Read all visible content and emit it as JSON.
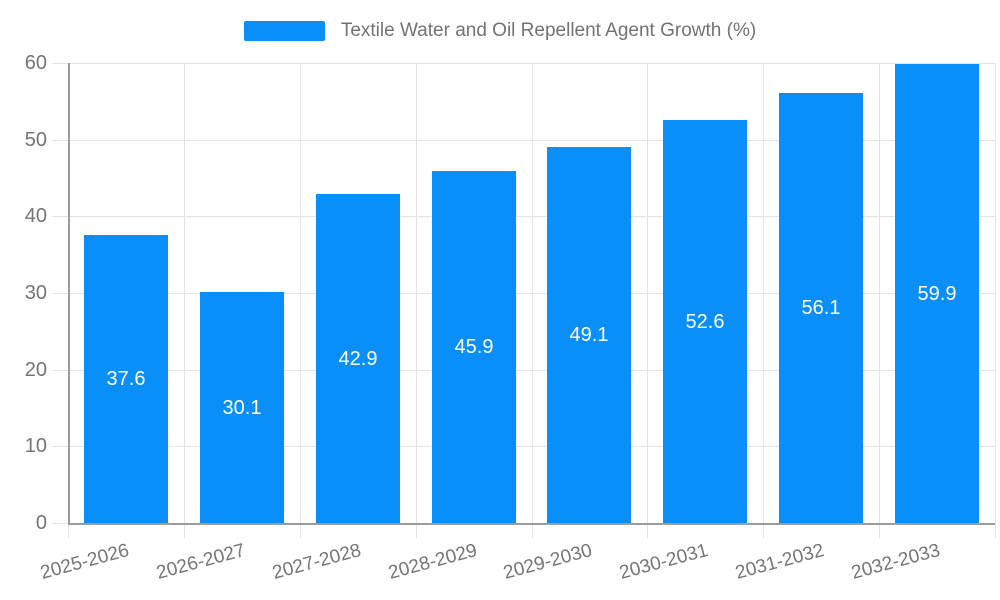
{
  "chart_data": {
    "type": "bar",
    "title": "",
    "legend": "Textile Water and Oil Repellent Agent Growth (%)",
    "legend_position": "top-center",
    "categories": [
      "2025-2026",
      "2026-2027",
      "2027-2028",
      "2028-2029",
      "2029-2030",
      "2030-2031",
      "2031-2032",
      "2032-2033"
    ],
    "values": [
      37.6,
      30.1,
      42.9,
      45.9,
      49.1,
      52.6,
      56.1,
      59.9
    ],
    "value_labels": [
      "37.6",
      "30.1",
      "42.9",
      "45.9",
      "49.1",
      "52.6",
      "56.1",
      "59.9"
    ],
    "xlabel": "",
    "ylabel": "",
    "ylim": [
      0,
      60
    ],
    "yticks": [
      0,
      10,
      20,
      30,
      40,
      50,
      60
    ],
    "grid": true,
    "x_label_rotation": -15,
    "bar_color": "#0a8ff9",
    "grid_color": "#e3e3e3",
    "axis_color": "#9c9c9c",
    "tick_label_color": "#757575",
    "value_label_color": "#ffffff"
  }
}
